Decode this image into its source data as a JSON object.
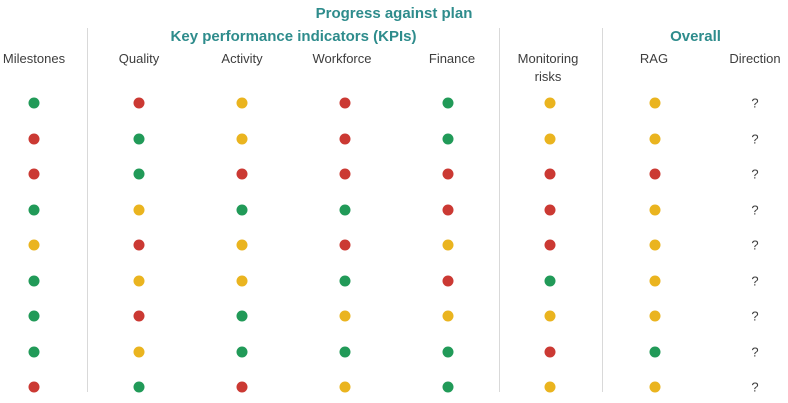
{
  "title": "Progress against plan",
  "colors": {
    "green": "#219a58",
    "red": "#cb3933",
    "amber": "#eab41f",
    "heading_teal": "#2e8c8c",
    "label_gray": "#3d3d3d",
    "divider_gray": "#d9d9d9"
  },
  "headers": {
    "kpi_group": "Key performance indicators (KPIs)",
    "overall_group": "Overall",
    "milestones": "Milestones",
    "quality": "Quality",
    "activity": "Activity",
    "workforce": "Workforce",
    "finance": "Finance",
    "monitoring_risks": "Monitoring risks",
    "rag": "RAG",
    "direction": "Direction"
  },
  "direction_symbol": "?",
  "chart_data": {
    "type": "table",
    "title": "Progress against plan",
    "column_groups": [
      {
        "label": "Key performance indicators (KPIs)",
        "columns": [
          "Quality",
          "Activity",
          "Workforce",
          "Finance"
        ]
      },
      {
        "label": "Overall",
        "columns": [
          "RAG",
          "Direction"
        ]
      }
    ],
    "columns": [
      "Milestones",
      "Quality",
      "Activity",
      "Workforce",
      "Finance",
      "Monitoring risks",
      "RAG",
      "Direction"
    ],
    "status_values": [
      "green",
      "amber",
      "red"
    ],
    "direction_value": "?",
    "rows": [
      [
        "green",
        "red",
        "amber",
        "red",
        "green",
        "amber",
        "amber",
        "?"
      ],
      [
        "red",
        "green",
        "amber",
        "red",
        "green",
        "amber",
        "amber",
        "?"
      ],
      [
        "red",
        "green",
        "red",
        "red",
        "red",
        "red",
        "red",
        "?"
      ],
      [
        "green",
        "amber",
        "green",
        "green",
        "red",
        "red",
        "amber",
        "?"
      ],
      [
        "amber",
        "red",
        "amber",
        "red",
        "amber",
        "red",
        "amber",
        "?"
      ],
      [
        "green",
        "amber",
        "amber",
        "green",
        "red",
        "green",
        "amber",
        "?"
      ],
      [
        "green",
        "red",
        "green",
        "amber",
        "amber",
        "amber",
        "amber",
        "?"
      ],
      [
        "green",
        "amber",
        "green",
        "green",
        "green",
        "red",
        "green",
        "?"
      ],
      [
        "red",
        "green",
        "red",
        "amber",
        "green",
        "amber",
        "amber",
        "?"
      ]
    ]
  }
}
